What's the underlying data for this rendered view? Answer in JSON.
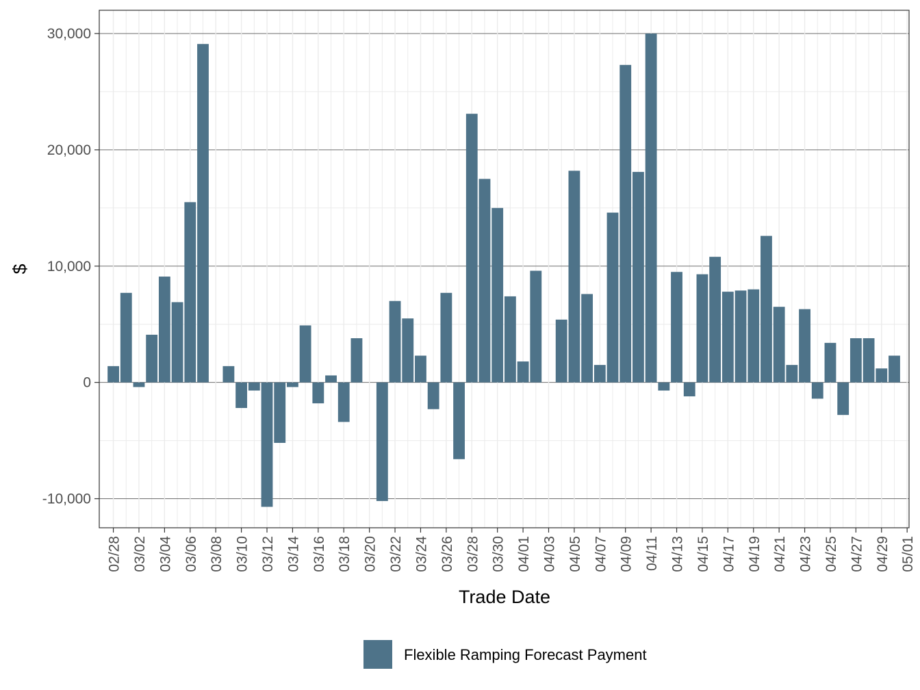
{
  "chart_data": {
    "type": "bar",
    "xlabel": "Trade Date",
    "ylabel": "$",
    "ylim": [
      -12500,
      32000
    ],
    "yticks": [
      -10000,
      0,
      10000,
      20000,
      30000
    ],
    "ytick_labels": [
      "-10,000",
      "0",
      "10,000",
      "20,000",
      "30,000"
    ],
    "y_minor_ticks": [
      -5000,
      5000,
      15000,
      25000
    ],
    "x_tick_labels": [
      "02/28",
      "03/02",
      "03/04",
      "03/06",
      "03/08",
      "03/10",
      "03/12",
      "03/14",
      "03/16",
      "03/18",
      "03/20",
      "03/22",
      "03/24",
      "03/26",
      "03/28",
      "03/30",
      "04/01",
      "04/03",
      "04/05",
      "04/07",
      "04/09",
      "04/11",
      "04/13",
      "04/15",
      "04/17",
      "04/19",
      "04/21",
      "04/23",
      "04/25",
      "04/27",
      "04/29",
      "05/01"
    ],
    "grid": true,
    "legend_position": "bottom",
    "series": [
      {
        "name": "Flexible Ramping Forecast Payment",
        "color": "#4e7389",
        "values": [
          1400,
          7700,
          -400,
          4100,
          9100,
          6900,
          15500,
          29100,
          0,
          1400,
          -2200,
          -700,
          -10700,
          -5200,
          -400,
          4900,
          -1800,
          600,
          -3400,
          3800,
          0,
          -10200,
          7000,
          5500,
          2300,
          -2300,
          7700,
          -6600,
          23100,
          17500,
          15000,
          7400,
          1800,
          9600,
          0,
          5400,
          18200,
          7600,
          1500,
          14600,
          27300,
          18100,
          30000,
          -700,
          9500,
          -1200,
          9300,
          10800,
          7800,
          7900,
          8000,
          12600,
          6500,
          1500,
          6300,
          -1400,
          3400,
          -2800,
          3800,
          3800,
          1200,
          2300
        ]
      }
    ]
  }
}
